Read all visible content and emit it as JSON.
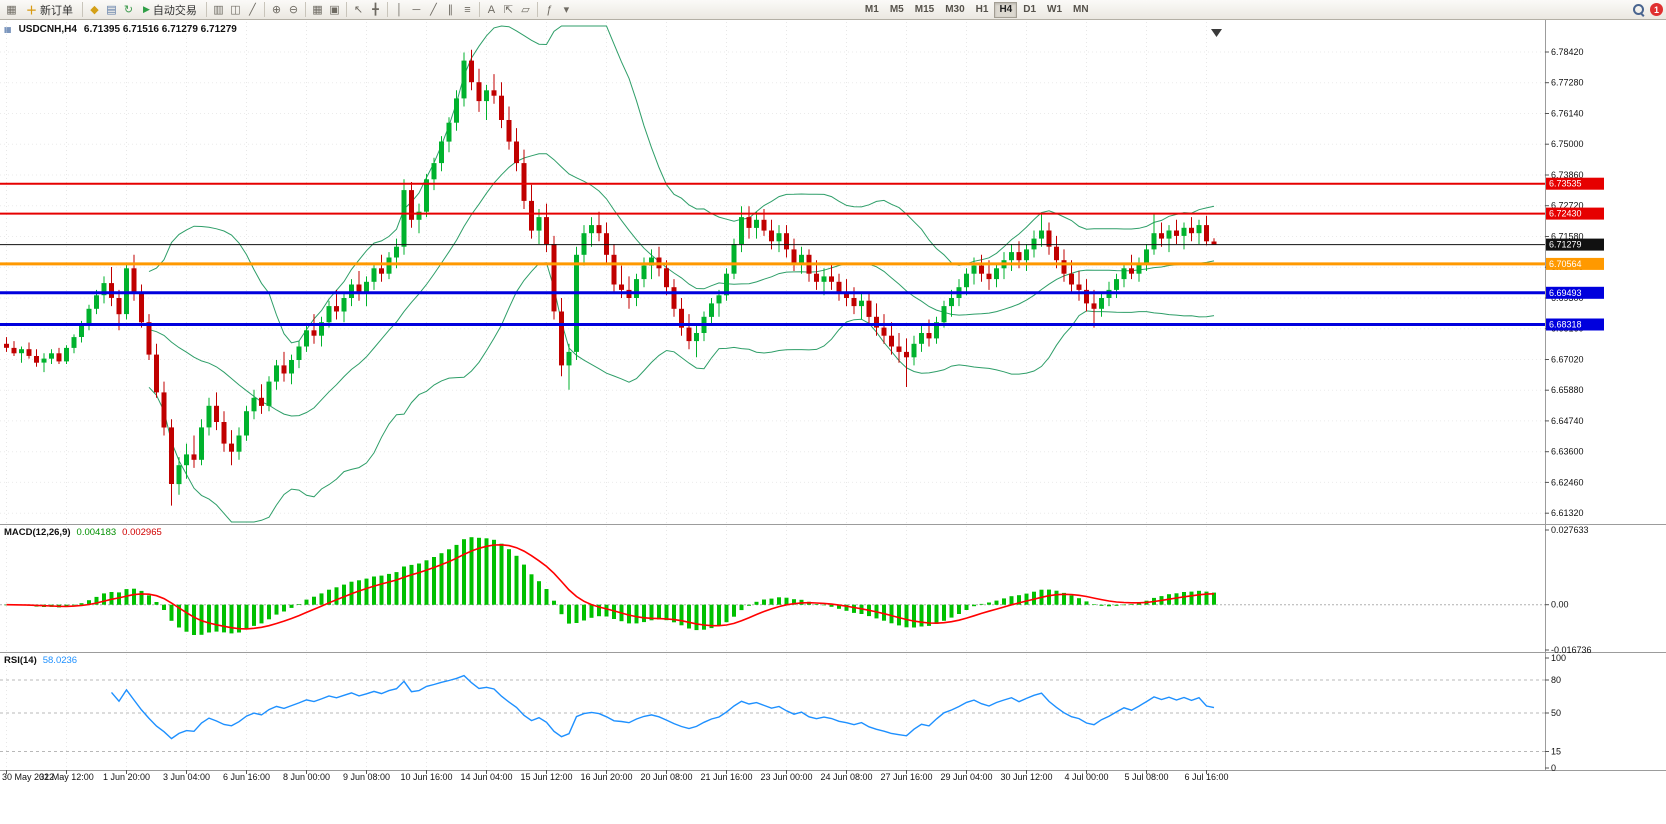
{
  "toolbar": {
    "new_order_label": "新订单",
    "auto_trading_label": "自动交易",
    "notification_count": "1",
    "left_icons": [
      {
        "name": "chart-window-icon",
        "glyph": "▦",
        "color": "#6e6a62"
      }
    ],
    "trade_icons": [
      {
        "name": "symbols-icon",
        "glyph": "◆",
        "color": "#d4a017"
      },
      {
        "name": "market-depth-icon",
        "glyph": "▤",
        "color": "#5b79a5"
      },
      {
        "name": "community-refresh-icon",
        "glyph": "↻",
        "color": "#3f9b4f"
      }
    ],
    "chart_icons": [
      {
        "name": "bar-chart-icon",
        "glyph": "▥"
      },
      {
        "name": "candlestick-chart-icon",
        "glyph": "◫"
      },
      {
        "name": "line-chart-icon",
        "glyph": "╱"
      },
      {
        "sep": true
      },
      {
        "name": "zoom-in-icon",
        "glyph": "⊕"
      },
      {
        "name": "zoom-out-icon",
        "glyph": "⊖"
      },
      {
        "sep": true
      },
      {
        "name": "tile-windows-icon",
        "glyph": "▦"
      },
      {
        "name": "arrange-windows-icon",
        "glyph": "▣"
      },
      {
        "sep": true
      },
      {
        "name": "cursor-icon",
        "glyph": "↖"
      },
      {
        "name": "crosshair-icon",
        "glyph": "╋"
      },
      {
        "sep": true
      },
      {
        "name": "vertical-line-icon",
        "glyph": "│"
      },
      {
        "name": "horizontal-line-icon",
        "glyph": "─"
      },
      {
        "name": "trendline-icon",
        "glyph": "╱"
      },
      {
        "name": "equidistant-channel-icon",
        "glyph": "∥"
      },
      {
        "name": "fibonacci-icon",
        "glyph": "≡"
      },
      {
        "sep": true
      },
      {
        "name": "text-icon",
        "glyph": "A"
      },
      {
        "name": "arrow-objects-icon",
        "glyph": "⇱"
      },
      {
        "name": "shapes-icon",
        "glyph": "▱"
      },
      {
        "sep": true
      },
      {
        "name": "indicators-icon",
        "glyph": "ƒ"
      },
      {
        "name": "indicators-dropdown-icon",
        "glyph": "▾"
      }
    ],
    "timeframes": [
      "M1",
      "M5",
      "M15",
      "M30",
      "H1",
      "H4",
      "D1",
      "W1",
      "MN"
    ],
    "active_timeframe": "H4"
  },
  "chart": {
    "title": "USDCNH,H4",
    "ohlc": "6.71395 6.71516 6.71279 6.71279"
  },
  "indicators": {
    "macd": {
      "label": "MACD(12,26,9)",
      "value_main": "0.004183",
      "value_signal": "0.002965",
      "fast": 12,
      "slow": 26,
      "signal": 9,
      "axis_labels": [
        "0.027633",
        "0.00",
        "-0.016736"
      ],
      "axis_values": [
        0.027633,
        0,
        -0.016736
      ],
      "histogram_color": "#00c000",
      "signal_color": "#ff0000"
    },
    "rsi": {
      "label": "RSI(14)",
      "value": "58.0236",
      "period": 14,
      "levels": [
        80,
        50,
        15
      ],
      "axis_labels": [
        "100",
        "80",
        "50",
        "15",
        "0"
      ],
      "axis_values": [
        100,
        80,
        50,
        15,
        0
      ],
      "line_color": "#1e90ff"
    }
  },
  "chart_data": {
    "type": "candlestick",
    "symbol": "USDCNH",
    "timeframe": "H4",
    "current_ohlc": {
      "open": "6.71395",
      "high": "6.71516",
      "low": "6.71279",
      "close": "6.71279"
    },
    "current_price": 6.71279,
    "up_color": "#00b22d",
    "down_color": "#c00000",
    "bollinger": {
      "period": 20,
      "deviation": 2,
      "color": "#2e9e68"
    },
    "price_axis_ticks": [
      6.7842,
      6.7728,
      6.7614,
      6.75,
      6.7386,
      6.7272,
      6.7158,
      6.7044,
      6.693,
      6.6816,
      6.6702,
      6.6588,
      6.6474,
      6.636,
      6.6246,
      6.6132
    ],
    "hlines": [
      {
        "price": 6.73535,
        "label": "6.73535",
        "color": "#e60000",
        "width": 2
      },
      {
        "price": 6.7243,
        "label": "6.72430",
        "color": "#e60000",
        "width": 2
      },
      {
        "price": 6.71279,
        "label": "6.71279",
        "color": "#111111",
        "width": 1
      },
      {
        "price": 6.70564,
        "label": "6.70564",
        "color": "#ff9900",
        "width": 3
      },
      {
        "price": 6.69493,
        "label": "6.69493",
        "color": "#0000dd",
        "width": 3
      },
      {
        "price": 6.68318,
        "label": "6.68318",
        "color": "#0000dd",
        "width": 3
      }
    ],
    "time_labels": [
      "30 May 2022",
      "31 May 12:00",
      "1 Jun 20:00",
      "3 Jun 04:00",
      "6 Jun 16:00",
      "8 Jun 00:00",
      "9 Jun 08:00",
      "10 Jun 16:00",
      "14 Jun 04:00",
      "15 Jun 12:00",
      "16 Jun 20:00",
      "20 Jun 08:00",
      "21 Jun 16:00",
      "23 Jun 00:00",
      "24 Jun 08:00",
      "27 Jun 16:00",
      "29 Jun 04:00",
      "30 Jun 12:00",
      "4 Jul 00:00",
      "5 Jul 08:00",
      "6 Jul 16:00"
    ],
    "candles": [
      [
        6.676,
        6.6785,
        6.673,
        6.6745
      ],
      [
        6.6745,
        6.677,
        6.6715,
        6.6725
      ],
      [
        6.6725,
        6.675,
        6.669,
        6.674
      ],
      [
        6.674,
        6.6765,
        6.6705,
        6.6715
      ],
      [
        6.6715,
        6.674,
        6.6675,
        6.669
      ],
      [
        6.669,
        6.6725,
        6.6655,
        6.6705
      ],
      [
        6.6705,
        6.674,
        6.6685,
        6.6725
      ],
      [
        6.6725,
        6.6745,
        6.6685,
        6.6695
      ],
      [
        6.6695,
        6.6755,
        6.6685,
        6.6745
      ],
      [
        6.6745,
        6.6795,
        6.6725,
        6.6785
      ],
      [
        6.6785,
        6.6845,
        6.6765,
        6.683
      ],
      [
        6.683,
        6.6905,
        6.681,
        6.689
      ],
      [
        6.689,
        6.696,
        6.687,
        6.694
      ],
      [
        6.694,
        6.701,
        6.691,
        6.6985
      ],
      [
        6.6985,
        6.7045,
        6.69,
        6.693
      ],
      [
        6.693,
        6.696,
        6.681,
        6.687
      ],
      [
        6.687,
        6.706,
        6.685,
        6.704
      ],
      [
        6.704,
        6.709,
        6.692,
        6.695
      ],
      [
        6.695,
        6.698,
        6.682,
        6.684
      ],
      [
        6.684,
        6.687,
        6.67,
        6.672
      ],
      [
        6.672,
        6.676,
        6.656,
        6.658
      ],
      [
        6.658,
        6.662,
        6.642,
        6.645
      ],
      [
        6.645,
        6.648,
        6.616,
        6.624
      ],
      [
        6.624,
        6.634,
        6.62,
        6.631
      ],
      [
        6.631,
        6.639,
        6.626,
        6.635
      ],
      [
        6.635,
        6.642,
        6.63,
        6.633
      ],
      [
        6.633,
        6.648,
        6.631,
        6.645
      ],
      [
        6.645,
        6.656,
        6.642,
        6.653
      ],
      [
        6.653,
        6.658,
        6.644,
        6.647
      ],
      [
        6.647,
        6.651,
        6.636,
        6.639
      ],
      [
        6.639,
        6.644,
        6.631,
        6.636
      ],
      [
        6.636,
        6.645,
        6.633,
        6.642
      ],
      [
        6.642,
        6.653,
        6.64,
        6.651
      ],
      [
        6.651,
        6.659,
        6.648,
        6.656
      ],
      [
        6.656,
        6.661,
        6.65,
        6.653
      ],
      [
        6.653,
        6.664,
        6.651,
        6.662
      ],
      [
        6.662,
        6.67,
        6.659,
        6.668
      ],
      [
        6.668,
        6.673,
        6.662,
        6.665
      ],
      [
        6.665,
        6.672,
        6.661,
        6.67
      ],
      [
        6.67,
        6.677,
        6.667,
        6.675
      ],
      [
        6.675,
        6.683,
        6.673,
        6.681
      ],
      [
        6.681,
        6.687,
        6.676,
        6.679
      ],
      [
        6.679,
        6.686,
        6.675,
        6.684
      ],
      [
        6.684,
        6.692,
        6.682,
        6.69
      ],
      [
        6.69,
        6.696,
        6.685,
        6.688
      ],
      [
        6.688,
        6.695,
        6.684,
        6.693
      ],
      [
        6.693,
        6.7,
        6.69,
        6.698
      ],
      [
        6.698,
        6.703,
        6.692,
        6.695
      ],
      [
        6.695,
        6.701,
        6.69,
        6.699
      ],
      [
        6.699,
        6.706,
        6.696,
        6.704
      ],
      [
        6.704,
        6.709,
        6.699,
        6.702
      ],
      [
        6.702,
        6.71,
        6.7,
        6.708
      ],
      [
        6.708,
        6.715,
        6.704,
        6.712
      ],
      [
        6.712,
        6.737,
        6.709,
        6.733
      ],
      [
        6.733,
        6.736,
        6.719,
        6.722
      ],
      [
        6.722,
        6.728,
        6.717,
        6.725
      ],
      [
        6.725,
        6.739,
        6.723,
        6.737
      ],
      [
        6.737,
        6.745,
        6.733,
        6.743
      ],
      [
        6.743,
        6.753,
        6.74,
        6.751
      ],
      [
        6.751,
        6.76,
        6.747,
        6.758
      ],
      [
        6.758,
        6.77,
        6.755,
        6.767
      ],
      [
        6.767,
        6.784,
        6.764,
        6.781
      ],
      [
        6.781,
        6.785,
        6.77,
        6.773
      ],
      [
        6.773,
        6.778,
        6.762,
        6.766
      ],
      [
        6.766,
        6.772,
        6.759,
        6.77
      ],
      [
        6.77,
        6.776,
        6.765,
        6.768
      ],
      [
        6.768,
        6.773,
        6.756,
        6.759
      ],
      [
        6.759,
        6.764,
        6.748,
        6.751
      ],
      [
        6.751,
        6.756,
        6.74,
        6.743
      ],
      [
        6.743,
        6.748,
        6.726,
        6.729
      ],
      [
        6.729,
        6.735,
        6.715,
        6.718
      ],
      [
        6.718,
        6.726,
        6.713,
        6.723
      ],
      [
        6.723,
        6.728,
        6.71,
        6.713
      ],
      [
        6.713,
        6.716,
        6.685,
        6.688
      ],
      [
        6.688,
        6.693,
        6.664,
        6.668
      ],
      [
        6.668,
        6.676,
        6.659,
        6.673
      ],
      [
        6.673,
        6.712,
        6.67,
        6.709
      ],
      [
        6.709,
        6.72,
        6.705,
        6.717
      ],
      [
        6.717,
        6.723,
        6.712,
        6.72
      ],
      [
        6.72,
        6.725,
        6.714,
        6.717
      ],
      [
        6.717,
        6.721,
        6.706,
        6.709
      ],
      [
        6.709,
        6.713,
        6.695,
        6.698
      ],
      [
        6.698,
        6.705,
        6.693,
        6.696
      ],
      [
        6.696,
        6.701,
        6.689,
        6.693
      ],
      [
        6.693,
        6.702,
        6.69,
        6.7
      ],
      [
        6.7,
        6.708,
        6.697,
        6.705
      ],
      [
        6.705,
        6.711,
        6.7,
        6.708
      ],
      [
        6.708,
        6.712,
        6.701,
        6.704
      ],
      [
        6.704,
        6.707,
        6.694,
        6.697
      ],
      [
        6.697,
        6.7,
        6.686,
        6.689
      ],
      [
        6.689,
        6.693,
        6.679,
        6.682
      ],
      [
        6.682,
        6.687,
        6.674,
        6.677
      ],
      [
        6.677,
        6.683,
        6.671,
        6.68
      ],
      [
        6.68,
        6.688,
        6.677,
        6.686
      ],
      [
        6.686,
        6.693,
        6.683,
        6.691
      ],
      [
        6.691,
        6.696,
        6.686,
        6.694
      ],
      [
        6.694,
        6.704,
        6.692,
        6.702
      ],
      [
        6.702,
        6.715,
        6.7,
        6.713
      ],
      [
        6.713,
        6.727,
        6.71,
        6.723
      ],
      [
        6.723,
        6.727,
        6.715,
        6.719
      ],
      [
        6.719,
        6.725,
        6.715,
        6.722
      ],
      [
        6.722,
        6.726,
        6.716,
        6.718
      ],
      [
        6.718,
        6.722,
        6.711,
        6.714
      ],
      [
        6.714,
        6.72,
        6.71,
        6.717
      ],
      [
        6.717,
        6.72,
        6.708,
        6.711
      ],
      [
        6.711,
        6.715,
        6.703,
        6.706
      ],
      [
        6.706,
        6.712,
        6.702,
        6.709
      ],
      [
        6.709,
        6.711,
        6.699,
        6.702
      ],
      [
        6.702,
        6.707,
        6.696,
        6.699
      ],
      [
        6.699,
        6.704,
        6.694,
        6.701
      ],
      [
        6.701,
        6.706,
        6.696,
        6.699
      ],
      [
        6.699,
        6.702,
        6.692,
        6.695
      ],
      [
        6.695,
        6.7,
        6.69,
        6.693
      ],
      [
        6.693,
        6.697,
        6.687,
        6.69
      ],
      [
        6.69,
        6.695,
        6.685,
        6.692
      ],
      [
        6.692,
        6.695,
        6.683,
        6.686
      ],
      [
        6.686,
        6.691,
        6.679,
        6.682
      ],
      [
        6.682,
        6.687,
        6.676,
        6.679
      ],
      [
        6.679,
        6.684,
        6.672,
        6.675
      ],
      [
        6.675,
        6.68,
        6.669,
        6.673
      ],
      [
        6.673,
        6.678,
        6.66,
        6.671
      ],
      [
        6.671,
        6.679,
        6.668,
        6.676
      ],
      [
        6.676,
        6.683,
        6.673,
        6.68
      ],
      [
        6.68,
        6.685,
        6.675,
        6.678
      ],
      [
        6.678,
        6.686,
        6.676,
        6.684
      ],
      [
        6.684,
        6.692,
        6.682,
        6.69
      ],
      [
        6.69,
        6.696,
        6.686,
        6.693
      ],
      [
        6.693,
        6.7,
        6.69,
        6.697
      ],
      [
        6.697,
        6.704,
        6.694,
        6.702
      ],
      [
        6.702,
        6.708,
        6.698,
        6.705
      ],
      [
        6.705,
        6.709,
        6.699,
        6.702
      ],
      [
        6.702,
        6.707,
        6.696,
        6.7
      ],
      [
        6.7,
        6.706,
        6.697,
        6.704
      ],
      [
        6.704,
        6.71,
        6.7,
        6.707
      ],
      [
        6.707,
        6.713,
        6.703,
        6.71
      ],
      [
        6.71,
        6.714,
        6.704,
        6.707
      ],
      [
        6.707,
        6.713,
        6.703,
        6.711
      ],
      [
        6.711,
        6.718,
        6.708,
        6.715
      ],
      [
        6.715,
        6.724,
        6.712,
        6.718
      ],
      [
        6.718,
        6.721,
        6.709,
        6.712
      ],
      [
        6.712,
        6.716,
        6.704,
        6.707
      ],
      [
        6.707,
        6.711,
        6.699,
        6.702
      ],
      [
        6.702,
        6.707,
        6.695,
        6.698
      ],
      [
        6.698,
        6.703,
        6.692,
        6.696
      ],
      [
        6.696,
        6.7,
        6.688,
        6.691
      ],
      [
        6.691,
        6.696,
        6.682,
        6.689
      ],
      [
        6.689,
        6.695,
        6.686,
        6.693
      ],
      [
        6.693,
        6.699,
        6.69,
        6.696
      ],
      [
        6.696,
        6.702,
        6.693,
        6.7
      ],
      [
        6.7,
        6.706,
        6.697,
        6.704
      ],
      [
        6.704,
        6.709,
        6.7,
        6.702
      ],
      [
        6.702,
        6.708,
        6.699,
        6.706
      ],
      [
        6.706,
        6.713,
        6.703,
        6.711
      ],
      [
        6.711,
        6.724,
        6.709,
        6.717
      ],
      [
        6.717,
        6.721,
        6.712,
        6.715
      ],
      [
        6.715,
        6.72,
        6.71,
        6.718
      ],
      [
        6.718,
        6.722,
        6.713,
        6.716
      ],
      [
        6.716,
        6.721,
        6.711,
        6.719
      ],
      [
        6.719,
        6.723,
        6.714,
        6.717
      ],
      [
        6.717,
        6.722,
        6.713,
        6.72
      ],
      [
        6.72,
        6.7235,
        6.7125,
        6.714
      ],
      [
        6.71395,
        6.71516,
        6.71279,
        6.71279
      ]
    ]
  }
}
